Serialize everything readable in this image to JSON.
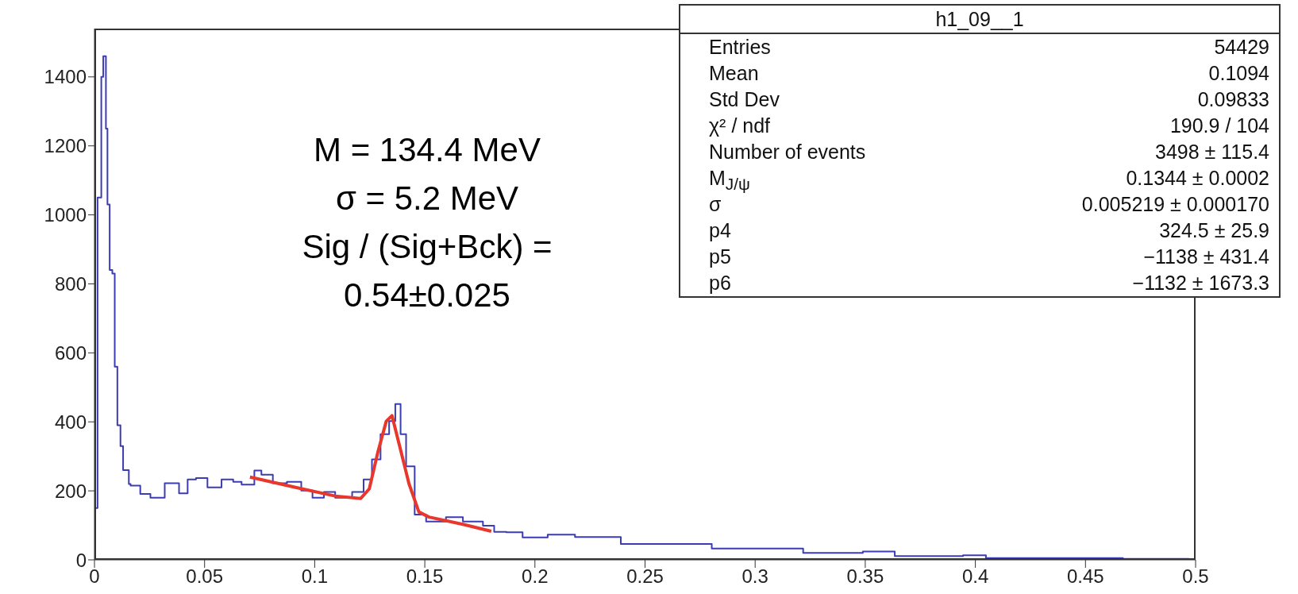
{
  "chart_data": {
    "type": "step",
    "xlim": [
      0,
      0.5
    ],
    "ylim": [
      0,
      1540
    ],
    "xticks": [
      0,
      0.05,
      0.1,
      0.15,
      0.2,
      0.25,
      0.3,
      0.35,
      0.4,
      0.45,
      0.5
    ],
    "yticks": [
      0,
      200,
      400,
      600,
      800,
      1000,
      1200,
      1400
    ],
    "grid": false,
    "legend": false,
    "marker": "none",
    "series": [
      {
        "color": "#3c3cb4",
        "x": [
          0,
          0.0003,
          0.0014,
          0.0026,
          0.0031,
          0.004,
          0.0052,
          0.0059,
          0.0069,
          0.0081,
          0.0092,
          0.0104,
          0.0118,
          0.013,
          0.0156,
          0.0164,
          0.0208,
          0.0254,
          0.029,
          0.0319,
          0.0384,
          0.0423,
          0.0461,
          0.0513,
          0.0577,
          0.063,
          0.0668,
          0.0726,
          0.0758,
          0.081,
          0.0874,
          0.0939,
          0.099,
          0.1042,
          0.1093,
          0.117,
          0.1222,
          0.126,
          0.1299,
          0.1338,
          0.1366,
          0.139,
          0.1415,
          0.1454,
          0.1506,
          0.1596,
          0.1673,
          0.1764,
          0.1815,
          0.187,
          0.1944,
          0.2058,
          0.2182,
          0.239,
          0.2597,
          0.2803,
          0.3011,
          0.3218,
          0.3489,
          0.3634,
          0.3944,
          0.4048,
          0.4359,
          0.467,
          0.497
        ],
        "values": [
          0,
          150,
          1050,
          1050,
          1400,
          1460,
          1250,
          1030,
          840,
          830,
          560,
          390,
          330,
          260,
          220,
          215,
          191,
          180,
          180,
          222,
          193,
          233,
          237,
          210,
          233,
          226,
          218,
          259,
          247,
          222,
          226,
          201,
          180,
          197,
          180,
          197,
          233,
          291,
          364,
          402,
          452,
          364,
          271,
          131,
          111,
          124,
          111,
          99,
          81,
          80,
          65,
          73,
          66,
          46,
          46,
          33,
          33,
          20,
          24,
          11,
          13,
          5,
          5,
          3,
          3
        ]
      },
      {
        "type": "line",
        "color": "#e8372c",
        "x": [
          0.0706,
          0.0913,
          0.1093,
          0.1209,
          0.1248,
          0.1286,
          0.1325,
          0.1351,
          0.139,
          0.1428,
          0.1473,
          0.1519,
          0.1673,
          0.1802
        ],
        "values": [
          240,
          210,
          185,
          178,
          206,
          310,
          402,
          418,
          319,
          221,
          139,
          124,
          103,
          83
        ]
      }
    ],
    "annotations": [
      "M = 134.4 MeV",
      "σ = 5.2 MeV",
      "Sig / (Sig+Bck) =",
      "0.54±0.025",
      "h1_09__1",
      "Entries",
      "54429",
      "Mean",
      "0.1094",
      "Std Dev",
      "0.09833",
      "χ² / ndf",
      "190.9 / 104",
      "Number of events",
      "3498 ± 115.4",
      "M$_{J/ψ}$",
      "0.1344 ± 0.0002",
      "σ",
      "0.005219 ± 0.000170",
      "p4",
      "324.5 ± 25.9",
      "p5",
      "−1138 ± 431.4",
      "p6",
      "−1132 ± 1673.3"
    ]
  }
}
